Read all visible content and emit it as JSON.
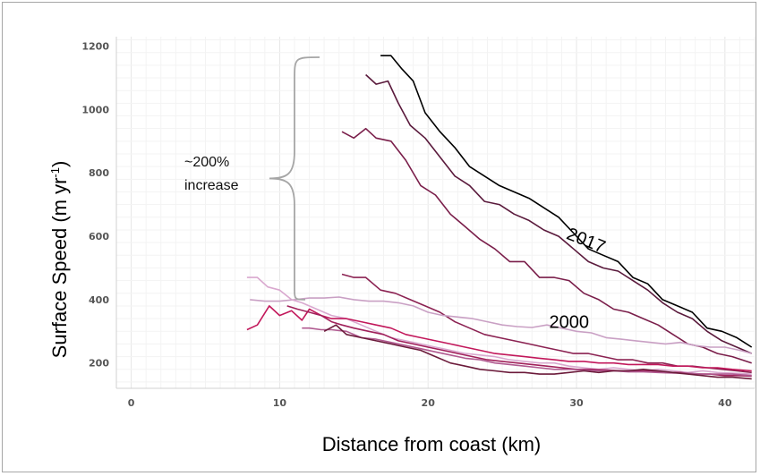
{
  "chart_data": {
    "type": "line",
    "title": "",
    "xlabel": "Distance from coast (km)",
    "ylabel": "Surface Speed (m yr",
    "ylabel_sup": "-1",
    "ylabel_tail": ")",
    "xlim": [
      -1,
      42
    ],
    "ylim": [
      120,
      1230
    ],
    "xticks": [
      0,
      10,
      20,
      30,
      40
    ],
    "yticks": [
      200,
      400,
      600,
      800,
      1000,
      1200
    ],
    "grid": true,
    "annotations": [
      {
        "id": "increase",
        "lines": [
          "~200%",
          "increase"
        ]
      },
      {
        "id": "label-2017",
        "text": "2017",
        "x": 30.5,
        "y": 570,
        "rotation": 22
      },
      {
        "id": "label-2000",
        "text": "2000",
        "x": 29.5,
        "y": 310,
        "rotation": 0
      }
    ],
    "brace": {
      "x": 11,
      "y_low": 400,
      "y_high": 1165
    },
    "series": [
      {
        "color": "#000000",
        "x": [
          16.8,
          17.5,
          18.2,
          19,
          19.8,
          20.8,
          21.8,
          22.8,
          23.8,
          24.8,
          25.8,
          26.8,
          27.8,
          28.8,
          29.8,
          30.8,
          31.8,
          32.8,
          33.8,
          34.8,
          35.8,
          36.8,
          37.8,
          38.8,
          39.8,
          40.8,
          41.8
        ],
        "y": [
          1170,
          1170,
          1130,
          1090,
          990,
          930,
          880,
          820,
          790,
          760,
          740,
          720,
          690,
          660,
          610,
          560,
          540,
          520,
          470,
          450,
          400,
          380,
          360,
          310,
          300,
          280,
          250
        ]
      },
      {
        "color": "#5a1a3c",
        "x": [
          15.8,
          16.5,
          17.3,
          18,
          18.8,
          19.8,
          20.8,
          21.8,
          22.8,
          23.8,
          24.8,
          25.8,
          26.8,
          27.8,
          28.8,
          29.8,
          30.8,
          31.8,
          32.8,
          33.8,
          34.8,
          35.8,
          36.8,
          37.8,
          38.8,
          39.8,
          40.8,
          41.8
        ],
        "y": [
          1110,
          1080,
          1090,
          1020,
          950,
          910,
          850,
          790,
          760,
          710,
          700,
          670,
          650,
          620,
          600,
          560,
          520,
          500,
          490,
          460,
          430,
          390,
          360,
          340,
          300,
          270,
          250,
          230
        ]
      },
      {
        "color": "#7a1e4a",
        "x": [
          14.2,
          15,
          15.8,
          16.5,
          17.5,
          18.5,
          19.5,
          20.5,
          21.5,
          22.5,
          23.5,
          24.5,
          25.5,
          26.5,
          27.5,
          28.5,
          29.5,
          30.5,
          31.5,
          32.5,
          33.5,
          34.5,
          35.5,
          36.5,
          37.5,
          38.5,
          39.5,
          40.5,
          41.8
        ],
        "y": [
          930,
          910,
          940,
          910,
          900,
          840,
          760,
          730,
          670,
          630,
          590,
          560,
          520,
          520,
          470,
          470,
          460,
          420,
          400,
          370,
          360,
          340,
          320,
          290,
          260,
          250,
          230,
          220,
          200
        ]
      },
      {
        "color": "#8b2252",
        "x": [
          14.2,
          15,
          15.8,
          16.8,
          17.8,
          18.8,
          19.8,
          20.8,
          21.8,
          22.8,
          23.8,
          24.8,
          25.8,
          26.8,
          27.8,
          28.8,
          29.8,
          30.8,
          31.8,
          32.8,
          33.8,
          34.8,
          35.8,
          36.8,
          37.8,
          38.8,
          39.8,
          40.8,
          41.8
        ],
        "y": [
          480,
          470,
          470,
          430,
          420,
          400,
          380,
          360,
          330,
          310,
          290,
          280,
          270,
          260,
          250,
          240,
          230,
          230,
          220,
          210,
          210,
          200,
          200,
          190,
          190,
          185,
          180,
          175,
          170
        ]
      },
      {
        "color": "#c9a0c4",
        "x": [
          8,
          9,
          10,
          11,
          12,
          13,
          14,
          15,
          16,
          17,
          18,
          19,
          20,
          21,
          22,
          23,
          24,
          25,
          26,
          27,
          28,
          29,
          30,
          31,
          32,
          33,
          34,
          35,
          36,
          37,
          38,
          39,
          40,
          41,
          41.8
        ],
        "y": [
          400,
          395,
          395,
          400,
          405,
          405,
          408,
          400,
          395,
          395,
          390,
          380,
          360,
          350,
          345,
          340,
          330,
          320,
          315,
          312,
          320,
          310,
          300,
          295,
          280,
          275,
          270,
          265,
          260,
          265,
          255,
          250,
          250,
          240,
          230
        ]
      },
      {
        "color": "#d9a8cf",
        "x": [
          7.8,
          8.5,
          9.2,
          10,
          10.8,
          11.5,
          12.5,
          13.5,
          14.5,
          15.5,
          16.5,
          17.5,
          18.5,
          19.5,
          20.5,
          21.5,
          22.5,
          23.5,
          24.5,
          25.5,
          26.5,
          27.5,
          28.5,
          29.5,
          30.5,
          31.5,
          32.5,
          33.5,
          34.5,
          35.5,
          36.5,
          37.5,
          38.5,
          39.5,
          40.5,
          41.8
        ],
        "y": [
          470,
          470,
          440,
          430,
          400,
          390,
          370,
          350,
          340,
          320,
          300,
          280,
          270,
          260,
          250,
          240,
          230,
          225,
          220,
          210,
          205,
          200,
          200,
          190,
          185,
          180,
          185,
          180,
          175,
          180,
          175,
          170,
          175,
          170,
          168,
          165
        ]
      },
      {
        "color": "#c2185b",
        "x": [
          7.8,
          8.5,
          9.3,
          10,
          10.8,
          11.5,
          12,
          12.8,
          13.5,
          14.5,
          15.5,
          16.5,
          17.5,
          18.5,
          19.5,
          20.5,
          21.5,
          22.5,
          23.5,
          24.5,
          25.5,
          26.5,
          27.5,
          28.5,
          29.5,
          30.5,
          31.5,
          32.5,
          33.5,
          34.5,
          35.5,
          36.5,
          37.5,
          38.5,
          39.5,
          40.5,
          41.8
        ],
        "y": [
          305,
          320,
          380,
          350,
          365,
          335,
          370,
          350,
          340,
          340,
          330,
          320,
          310,
          290,
          280,
          270,
          260,
          250,
          240,
          230,
          225,
          220,
          215,
          210,
          205,
          205,
          200,
          200,
          195,
          195,
          195,
          190,
          190,
          185,
          185,
          180,
          175
        ]
      },
      {
        "color": "#a0205a",
        "x": [
          10.5,
          11.2,
          12,
          12.8,
          13.5,
          14.2,
          15,
          16,
          17,
          18,
          19,
          20,
          21,
          22,
          23,
          24,
          25,
          26,
          27,
          28,
          29,
          30,
          31,
          32,
          33,
          34,
          35,
          36,
          37,
          38,
          39,
          40,
          41,
          41.8
        ],
        "y": [
          380,
          370,
          360,
          350,
          330,
          320,
          310,
          300,
          290,
          270,
          260,
          250,
          240,
          230,
          220,
          210,
          205,
          200,
          195,
          190,
          185,
          180,
          180,
          178,
          175,
          175,
          175,
          170,
          170,
          165,
          165,
          160,
          160,
          158
        ]
      },
      {
        "color": "#b05a90",
        "x": [
          11.5,
          12,
          12.8,
          13.5,
          14.5,
          15.5,
          16.5,
          17.5,
          18.5,
          19.5,
          20.5,
          21.5,
          22.5,
          23.5,
          24.5,
          25.5,
          26.5,
          27.5,
          28.5,
          29.5,
          30.5,
          31.5,
          32.5,
          33.5,
          34.5,
          35.5,
          36.5,
          37.5,
          38.5,
          39.5,
          40.5,
          41.8
        ],
        "y": [
          310,
          310,
          305,
          305,
          300,
          280,
          275,
          265,
          255,
          245,
          235,
          225,
          215,
          210,
          200,
          195,
          190,
          185,
          180,
          180,
          178,
          175,
          175,
          172,
          172,
          170,
          168,
          168,
          165,
          165,
          165,
          160
        ]
      },
      {
        "color": "#6b1a3a",
        "x": [
          13,
          13.8,
          14.5,
          15.5,
          16.5,
          17.5,
          18.5,
          19.5,
          20.5,
          21.5,
          22.5,
          23.5,
          24.5,
          25.5,
          26.5,
          27.5,
          28.5,
          29.5,
          30.5,
          31.5,
          32.5,
          33.5,
          34.5,
          35.5,
          36.5,
          37.5,
          38.5,
          39.5,
          40.5,
          41.8
        ],
        "y": [
          300,
          320,
          290,
          280,
          270,
          260,
          250,
          240,
          220,
          200,
          190,
          180,
          175,
          170,
          170,
          165,
          165,
          170,
          175,
          170,
          175,
          175,
          180,
          175,
          170,
          165,
          160,
          155,
          155,
          150
        ]
      }
    ]
  }
}
